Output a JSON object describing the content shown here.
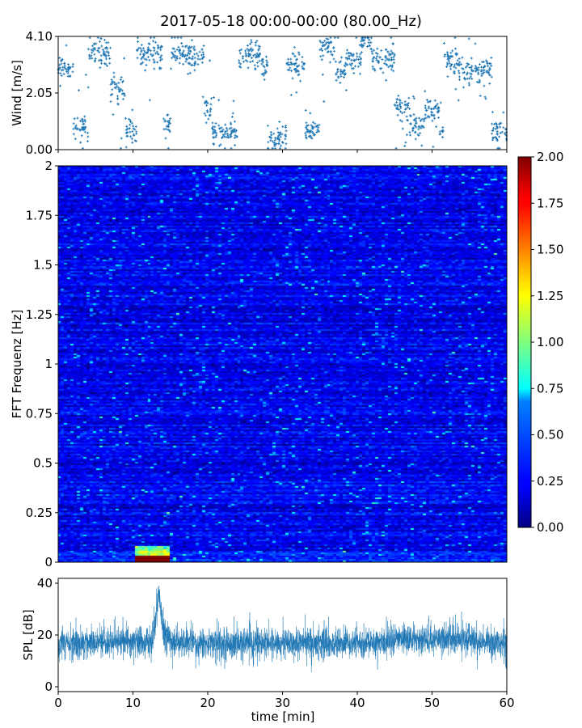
{
  "title": "2017-05-18 00:00-00:00 (80.00_Hz)",
  "chart_data": [
    {
      "type": "scatter",
      "panel": "wind",
      "ylabel": "Wind [m/s]",
      "xlim": [
        0,
        60
      ],
      "ylim": [
        0,
        4.1
      ],
      "yticks": [
        "0.00",
        "2.05",
        "4.10"
      ],
      "color": "#1f77b4",
      "segments": [
        {
          "t": [
            0,
            2
          ],
          "level": 3.0
        },
        {
          "t": [
            2,
            4
          ],
          "level": 0.8
        },
        {
          "t": [
            4,
            7
          ],
          "level": 3.5
        },
        {
          "t": [
            7,
            9
          ],
          "level": 2.2
        },
        {
          "t": [
            9,
            10.5
          ],
          "level": 0.7
        },
        {
          "t": [
            10.5,
            14
          ],
          "level": 3.4
        },
        {
          "t": [
            14,
            15
          ],
          "level": 1.0
        },
        {
          "t": [
            15,
            19.5
          ],
          "level": 3.4
        },
        {
          "t": [
            19.5,
            20.5
          ],
          "level": 1.5
        },
        {
          "t": [
            20.5,
            24
          ],
          "level": 0.6
        },
        {
          "t": [
            24,
            27
          ],
          "level": 3.4
        },
        {
          "t": [
            27,
            28
          ],
          "level": 3.0
        },
        {
          "t": [
            28,
            30.5
          ],
          "level": 0.4
        },
        {
          "t": [
            30.5,
            33
          ],
          "level": 3.0
        },
        {
          "t": [
            33,
            35
          ],
          "level": 0.7
        },
        {
          "t": [
            35,
            37
          ],
          "level": 3.7
        },
        {
          "t": [
            37,
            38.5
          ],
          "level": 2.8
        },
        {
          "t": [
            38.5,
            40.5
          ],
          "level": 3.3
        },
        {
          "t": [
            40.5,
            42
          ],
          "level": 3.9
        },
        {
          "t": [
            42,
            45
          ],
          "level": 3.3
        },
        {
          "t": [
            45,
            47
          ],
          "level": 1.5
        },
        {
          "t": [
            47,
            49
          ],
          "level": 0.9
        },
        {
          "t": [
            49,
            51
          ],
          "level": 1.4
        },
        {
          "t": [
            51,
            51.5
          ],
          "level": 0.6
        },
        {
          "t": [
            51.5,
            53.5
          ],
          "level": 3.3
        },
        {
          "t": [
            53.5,
            58
          ],
          "level": 2.9
        },
        {
          "t": [
            58,
            60
          ],
          "level": 0.6
        }
      ]
    },
    {
      "type": "heatmap",
      "panel": "spectrogram",
      "ylabel": "FFT Frequenz [Hz]",
      "xlim": [
        0,
        60
      ],
      "ylim": [
        0,
        2
      ],
      "yticks": [
        "0",
        "0.25",
        "0.5",
        "0.75",
        "1",
        "1.25",
        "1.5",
        "1.75",
        "2"
      ],
      "colorbar": {
        "range": [
          0,
          2
        ],
        "ticks": [
          "0.00",
          "0.25",
          "0.50",
          "0.75",
          "1.00",
          "1.25",
          "1.50",
          "1.75",
          "2.00"
        ],
        "colormap": "jet"
      },
      "background_level": 0.22,
      "hotspot": {
        "t": [
          10.5,
          14.8
        ],
        "f": [
          0,
          0.08
        ],
        "levels": [
          2.0,
          1.1,
          0.9
        ]
      }
    },
    {
      "type": "line",
      "panel": "spl",
      "ylabel": "SPL [dB]",
      "xlabel": "time [min]",
      "xlim": [
        0,
        60
      ],
      "ylim": [
        0,
        40
      ],
      "yticks": [
        "0",
        "20",
        "40"
      ],
      "xticks": [
        "0",
        "10",
        "20",
        "30",
        "40",
        "50",
        "60"
      ],
      "color": "#1f77b4",
      "baseline_db": 17,
      "peak": {
        "t": 13.5,
        "db": 40
      }
    }
  ]
}
